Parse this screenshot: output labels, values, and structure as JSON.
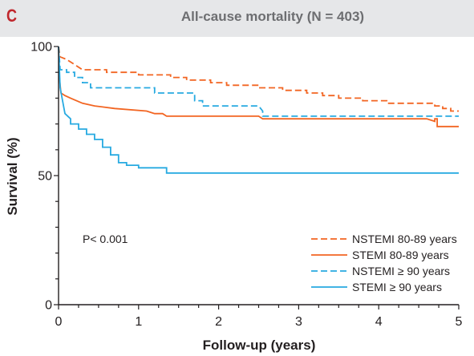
{
  "panel_label": "C",
  "chart_data": {
    "type": "line",
    "chart_style": "kaplan-meier step curves",
    "title": "All-cause mortality (N = 403)",
    "xlabel": "Follow-up (years)",
    "ylabel": "Survival (%)",
    "xlim": [
      0,
      5
    ],
    "ylim": [
      0,
      100
    ],
    "x_ticks": [
      0,
      1,
      2,
      3,
      4,
      5
    ],
    "y_tick_labels": [
      0,
      50,
      100
    ],
    "grid": false,
    "legend_position": "bottom-right",
    "annotation": "P< 0.001",
    "series": [
      {
        "name": "NSTEMI 80-89 years",
        "color": "#f26522",
        "dash": "dashed",
        "points": [
          [
            0,
            100
          ],
          [
            0.02,
            96
          ],
          [
            0.1,
            95
          ],
          [
            0.2,
            93
          ],
          [
            0.3,
            91
          ],
          [
            0.6,
            91
          ],
          [
            0.6,
            90
          ],
          [
            1.0,
            90
          ],
          [
            1.0,
            89
          ],
          [
            1.4,
            89
          ],
          [
            1.4,
            88
          ],
          [
            1.6,
            88
          ],
          [
            1.6,
            87
          ],
          [
            1.9,
            87
          ],
          [
            1.9,
            86
          ],
          [
            2.1,
            86
          ],
          [
            2.1,
            85
          ],
          [
            2.5,
            85
          ],
          [
            2.5,
            84
          ],
          [
            2.8,
            84
          ],
          [
            2.8,
            83
          ],
          [
            3.1,
            83
          ],
          [
            3.1,
            82
          ],
          [
            3.3,
            82
          ],
          [
            3.3,
            81
          ],
          [
            3.5,
            81
          ],
          [
            3.5,
            80
          ],
          [
            3.8,
            80
          ],
          [
            3.8,
            79
          ],
          [
            4.1,
            79
          ],
          [
            4.1,
            78
          ],
          [
            4.7,
            78
          ],
          [
            4.7,
            77
          ],
          [
            4.8,
            77
          ],
          [
            4.8,
            76
          ],
          [
            4.9,
            76
          ],
          [
            4.9,
            75
          ],
          [
            5.0,
            75
          ]
        ]
      },
      {
        "name": "STEMI 80-89 years",
        "color": "#f26522",
        "dash": "solid",
        "points": [
          [
            0,
            100
          ],
          [
            0.01,
            88
          ],
          [
            0.03,
            82
          ],
          [
            0.08,
            81
          ],
          [
            0.15,
            80
          ],
          [
            0.3,
            78
          ],
          [
            0.45,
            77
          ],
          [
            0.7,
            76
          ],
          [
            1.1,
            75
          ],
          [
            1.2,
            74
          ],
          [
            1.3,
            74
          ],
          [
            1.35,
            73
          ],
          [
            2.5,
            73
          ],
          [
            2.55,
            72
          ],
          [
            4.6,
            72
          ],
          [
            4.7,
            71
          ],
          [
            4.7,
            72
          ],
          [
            4.73,
            72
          ],
          [
            4.73,
            69
          ],
          [
            5.0,
            69
          ]
        ]
      },
      {
        "name": "NSTEMI ≥ 90 years",
        "color": "#27aae1",
        "dash": "dashed",
        "points": [
          [
            0,
            100
          ],
          [
            0.02,
            91
          ],
          [
            0.1,
            91
          ],
          [
            0.1,
            90
          ],
          [
            0.2,
            90
          ],
          [
            0.2,
            88
          ],
          [
            0.3,
            88
          ],
          [
            0.3,
            86
          ],
          [
            0.4,
            86
          ],
          [
            0.4,
            84
          ],
          [
            1.2,
            84
          ],
          [
            1.2,
            82
          ],
          [
            1.7,
            82
          ],
          [
            1.7,
            79
          ],
          [
            1.8,
            79
          ],
          [
            1.8,
            77
          ],
          [
            2.5,
            77
          ],
          [
            2.55,
            75
          ],
          [
            2.55,
            73
          ],
          [
            5.0,
            73
          ]
        ]
      },
      {
        "name": "STEMI ≥ 90 years",
        "color": "#27aae1",
        "dash": "solid",
        "points": [
          [
            0,
            100
          ],
          [
            0.02,
            84
          ],
          [
            0.08,
            74
          ],
          [
            0.15,
            72
          ],
          [
            0.15,
            70
          ],
          [
            0.25,
            70
          ],
          [
            0.25,
            68
          ],
          [
            0.35,
            68
          ],
          [
            0.35,
            66
          ],
          [
            0.45,
            66
          ],
          [
            0.45,
            64
          ],
          [
            0.55,
            64
          ],
          [
            0.55,
            61
          ],
          [
            0.65,
            61
          ],
          [
            0.65,
            58
          ],
          [
            0.75,
            58
          ],
          [
            0.75,
            55
          ],
          [
            0.85,
            55
          ],
          [
            0.85,
            54
          ],
          [
            1.0,
            54
          ],
          [
            1.0,
            53
          ],
          [
            1.35,
            53
          ],
          [
            1.35,
            51
          ],
          [
            5.0,
            51
          ]
        ]
      }
    ]
  }
}
